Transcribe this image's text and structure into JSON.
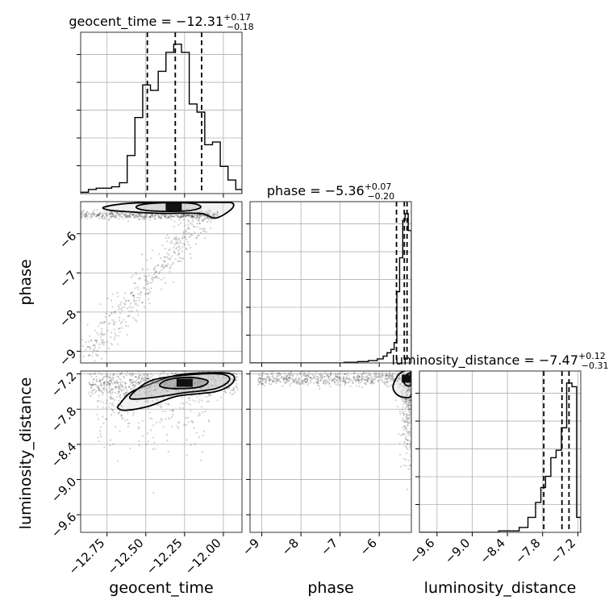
{
  "chart_data": {
    "type": "corner",
    "parameters": [
      {
        "name": "geocent_time",
        "range": [
          -12.92,
          -11.88
        ],
        "ticks": [
          -12.75,
          -12.5,
          -12.25,
          -12.0
        ],
        "tick_labels": [
          "−12.75",
          "−12.50",
          "−12.25",
          "−12.00"
        ],
        "title_prefix": "geocent_time = ",
        "median": "−12.31",
        "plus": "+0.17",
        "minus": "−0.18",
        "quantiles": [
          -12.49,
          -12.31,
          -12.14
        ],
        "hist_bins": [
          -12.92,
          -12.87,
          -12.82,
          -12.77,
          -12.72,
          -12.67,
          -12.62,
          -12.57,
          -12.52,
          -12.47,
          -12.42,
          -12.37,
          -12.32,
          -12.27,
          -12.22,
          -12.17,
          -12.12,
          -12.07,
          -12.02,
          -11.97,
          -11.92,
          -11.88
        ],
        "hist_counts": [
          0.5,
          1.5,
          2,
          2,
          2.5,
          4,
          14,
          28,
          40,
          38,
          45,
          52,
          55,
          52,
          33,
          30,
          18,
          19,
          10,
          5,
          1.5
        ]
      },
      {
        "name": "phase",
        "range": [
          -9.3,
          -5.18
        ],
        "ticks": [
          -9,
          -8,
          -7,
          -6
        ],
        "tick_labels": [
          "−9",
          "−8",
          "−7",
          "−6"
        ],
        "title_prefix": "phase = ",
        "median": "−5.36",
        "plus": "+0.07",
        "minus": "−0.20",
        "quantiles": [
          -5.56,
          -5.36,
          -5.29
        ],
        "hist_bins": [
          -6.9,
          -6.55,
          -6.28,
          -6.05,
          -5.9,
          -5.8,
          -5.7,
          -5.62,
          -5.55,
          -5.48,
          -5.4,
          -5.34,
          -5.26,
          -5.18
        ],
        "hist_counts": [
          0.2,
          0.4,
          0.7,
          1.2,
          2,
          3,
          4,
          6,
          21,
          31,
          42,
          44,
          39
        ]
      },
      {
        "name": "luminosity_distance",
        "range": [
          -9.9,
          -7.15
        ],
        "ticks": [
          -9.6,
          -9.0,
          -8.4,
          -7.8,
          -7.2
        ],
        "tick_labels": [
          "−9.6",
          "−9.0",
          "−8.4",
          "−7.8",
          "−7.2"
        ],
        "title_prefix": "luminosity_distance = ",
        "median": "−7.47",
        "plus": "+0.12",
        "minus": "−0.31",
        "quantiles": [
          -7.78,
          -7.47,
          -7.35
        ],
        "hist_bins": [
          -8.55,
          -8.2,
          -8.05,
          -7.92,
          -7.83,
          -7.75,
          -7.66,
          -7.57,
          -7.48,
          -7.39,
          -7.3,
          -7.22,
          -7.15
        ],
        "hist_counts": [
          0.4,
          1.3,
          4,
          8,
          12,
          15,
          20,
          22,
          28,
          40,
          39,
          4
        ]
      }
    ],
    "contours_2d": [
      {
        "x": "geocent_time",
        "y": "phase",
        "levels": [
          [
            [
              -12.55,
              -5.28
            ],
            [
              -12.45,
              -5.22
            ],
            [
              -12.25,
              -5.21
            ],
            [
              -12.17,
              -5.25
            ],
            [
              -12.15,
              -5.34
            ],
            [
              -12.25,
              -5.42
            ],
            [
              -12.45,
              -5.42
            ],
            [
              -12.55,
              -5.36
            ]
          ],
          [
            [
              -12.77,
              -5.32
            ],
            [
              -12.6,
              -5.22
            ],
            [
              -12.3,
              -5.2
            ],
            [
              -12.02,
              -5.2
            ],
            [
              -11.94,
              -5.22
            ],
            [
              -11.95,
              -5.38
            ],
            [
              -12.05,
              -5.6
            ],
            [
              -12.15,
              -5.48
            ],
            [
              -12.4,
              -5.48
            ],
            [
              -12.6,
              -5.44
            ],
            [
              -12.73,
              -5.4
            ]
          ]
        ],
        "peak": [
          -12.32,
          -5.32
        ]
      },
      {
        "x": "geocent_time",
        "y": "luminosity_distance",
        "levels": [
          [
            [
              -12.4,
              -7.35
            ],
            [
              -12.33,
              -7.28
            ],
            [
              -12.2,
              -7.26
            ],
            [
              -12.1,
              -7.32
            ],
            [
              -12.15,
              -7.42
            ],
            [
              -12.3,
              -7.45
            ],
            [
              -12.4,
              -7.42
            ]
          ],
          [
            [
              -12.55,
              -7.45
            ],
            [
              -12.45,
              -7.3
            ],
            [
              -12.25,
              -7.22
            ],
            [
              -12.02,
              -7.2
            ],
            [
              -11.96,
              -7.3
            ],
            [
              -12.05,
              -7.45
            ],
            [
              -12.25,
              -7.52
            ],
            [
              -12.45,
              -7.6
            ],
            [
              -12.6,
              -7.62
            ]
          ],
          [
            [
              -12.67,
              -7.72
            ],
            [
              -12.6,
              -7.52
            ],
            [
              -12.48,
              -7.38
            ],
            [
              -12.3,
              -7.22
            ],
            [
              -12.1,
              -7.18
            ],
            [
              -11.95,
              -7.2
            ],
            [
              -11.94,
              -7.35
            ],
            [
              -12.05,
              -7.5
            ],
            [
              -12.3,
              -7.58
            ],
            [
              -12.48,
              -7.75
            ],
            [
              -12.63,
              -7.82
            ],
            [
              -12.68,
              -7.78
            ]
          ]
        ],
        "peak": [
          -12.25,
          -7.35
        ]
      },
      {
        "x": "phase",
        "y": "luminosity_distance",
        "levels": [
          [
            [
              -5.35,
              -7.26
            ],
            [
              -5.28,
              -7.2
            ],
            [
              -5.2,
              -7.2
            ],
            [
              -5.19,
              -7.38
            ],
            [
              -5.3,
              -7.4
            ],
            [
              -5.38,
              -7.33
            ]
          ],
          [
            [
              -5.55,
              -7.25
            ],
            [
              -5.45,
              -7.18
            ],
            [
              -5.35,
              -7.15
            ],
            [
              -5.2,
              -7.15
            ],
            [
              -5.18,
              -7.55
            ],
            [
              -5.35,
              -7.6
            ],
            [
              -5.55,
              -7.55
            ],
            [
              -5.65,
              -7.42
            ]
          ]
        ],
        "peak": [
          -5.22,
          -7.28
        ]
      }
    ]
  }
}
